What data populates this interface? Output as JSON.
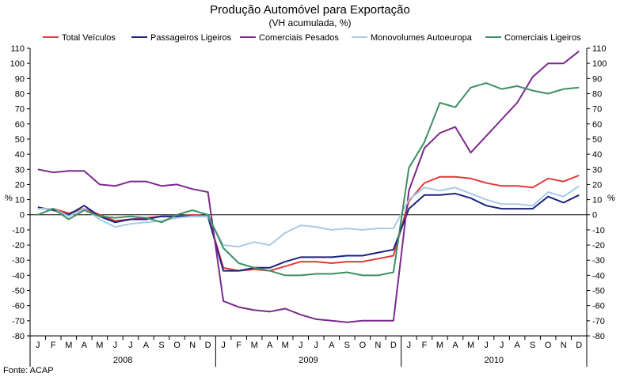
{
  "chart_data": {
    "type": "line",
    "title": "Produção Automóvel para Exportação",
    "subtitle": "(VH acumulada, %)",
    "ylabel_left": "%",
    "ylabel_right": "%",
    "ylim": [
      -80,
      110
    ],
    "yticks": [
      -80,
      -70,
      -60,
      -50,
      -40,
      -30,
      -20,
      -10,
      0,
      10,
      20,
      30,
      40,
      50,
      60,
      70,
      80,
      90,
      100,
      110
    ],
    "grid": false,
    "legend": "top",
    "source": "Fonte: ACAP",
    "years": [
      "2008",
      "2009",
      "2010"
    ],
    "months": [
      "J",
      "F",
      "M",
      "A",
      "M",
      "J",
      "J",
      "A",
      "S",
      "O",
      "N",
      "D"
    ],
    "series": [
      {
        "name": "Total Veículos",
        "color": "#e03a3a",
        "values": [
          4,
          4,
          1,
          4,
          0,
          -4,
          -3,
          -2,
          -1,
          -1,
          0,
          -1,
          -35,
          -37,
          -36,
          -37,
          -34,
          -31,
          -31,
          -32,
          -31,
          -31,
          -29,
          -27,
          9,
          21,
          25,
          25,
          24,
          21,
          19,
          19,
          18,
          24,
          22,
          26
        ]
      },
      {
        "name": "Passageiros Ligeiros",
        "color": "#1a237e",
        "values": [
          5,
          3,
          0,
          6,
          -1,
          -5,
          -3,
          -3,
          -1,
          -1,
          -1,
          -1,
          -37,
          -37,
          -35,
          -35,
          -31,
          -28,
          -28,
          -28,
          -27,
          -27,
          -25,
          -23,
          4,
          13,
          13,
          14,
          11,
          6,
          4,
          4,
          4,
          12,
          8,
          13
        ]
      },
      {
        "name": "Comerciais Pesados",
        "color": "#7b2a8c",
        "values": [
          30,
          28,
          29,
          29,
          20,
          19,
          22,
          22,
          19,
          20,
          17,
          15,
          -57,
          -61,
          -63,
          -64,
          -62,
          -66,
          -69,
          -70,
          -71,
          -70,
          -70,
          -70,
          16,
          44,
          54,
          58,
          41,
          52,
          63,
          74,
          91,
          100,
          100,
          108
        ]
      },
      {
        "name": "Monovolumes Autoeuropa",
        "color": "#a8cbe8",
        "values": [
          4,
          4,
          -1,
          4,
          -3,
          -8,
          -6,
          -5,
          -4,
          -2,
          -1,
          -1,
          -20,
          -21,
          -18,
          -20,
          -12,
          -7,
          -8,
          -10,
          -9,
          -10,
          -9,
          -9,
          10,
          18,
          16,
          18,
          14,
          10,
          7,
          7,
          6,
          15,
          12,
          19
        ]
      },
      {
        "name": "Comerciais Ligeiros",
        "color": "#3f8f63",
        "values": [
          0,
          4,
          -3,
          3,
          -1,
          -2,
          -1,
          -2,
          -5,
          0,
          3,
          0,
          -22,
          -32,
          -35,
          -37,
          -40,
          -40,
          -39,
          -39,
          -38,
          -40,
          -40,
          -38,
          31,
          48,
          74,
          71,
          84,
          87,
          83,
          85,
          82,
          80,
          83,
          84
        ]
      }
    ]
  }
}
